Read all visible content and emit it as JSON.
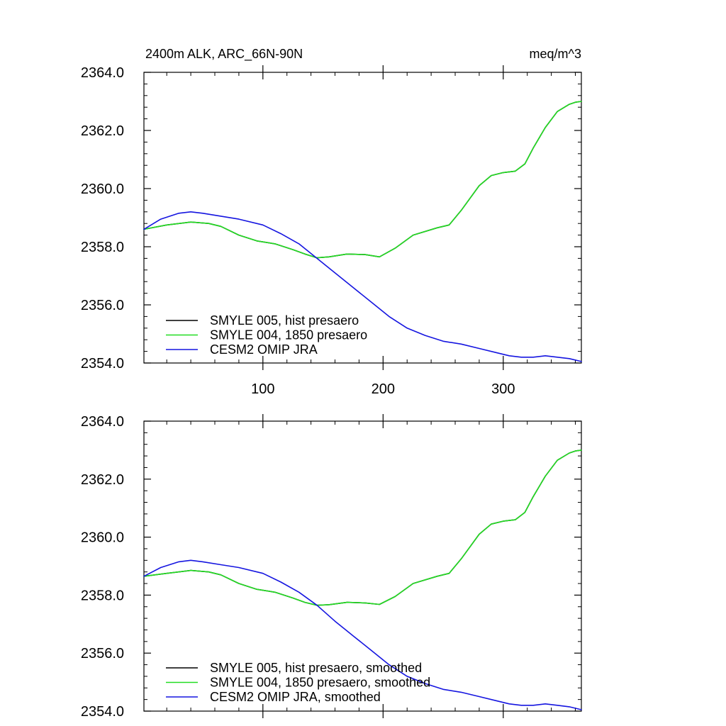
{
  "chart_data": [
    {
      "type": "line",
      "title": "2400m ALK, ARC_66N-90N",
      "units": "meq/m^3",
      "xlim": [
        1,
        365
      ],
      "ylim": [
        2354.0,
        2364.0
      ],
      "xticks": [
        100,
        200,
        300
      ],
      "xtick_labels": [
        "100",
        "200",
        "300"
      ],
      "yticks": [
        2354.0,
        2356.0,
        2358.0,
        2360.0,
        2362.0,
        2364.0
      ],
      "ytick_labels": [
        "2354.0",
        "2356.0",
        "2358.0",
        "2360.0",
        "2362.0",
        "2364.0"
      ],
      "grid": false,
      "legend_position": "bottom-left",
      "series": [
        {
          "name": "SMYLE 005, hist presaero",
          "color": "#000000",
          "x": [
            1,
            20,
            40,
            55,
            65,
            80,
            95,
            110,
            125,
            135,
            145,
            155,
            170,
            185,
            197,
            210,
            225,
            245,
            255,
            265,
            280,
            290,
            300,
            310,
            318,
            325,
            335,
            345,
            355,
            360,
            365
          ],
          "y": [
            2358.6,
            2358.75,
            2358.85,
            2358.8,
            2358.7,
            2358.4,
            2358.2,
            2358.1,
            2357.9,
            2357.75,
            2357.62,
            2357.65,
            2357.75,
            2357.73,
            2357.65,
            2357.95,
            2358.4,
            2358.65,
            2358.75,
            2359.25,
            2360.1,
            2360.45,
            2360.55,
            2360.6,
            2360.85,
            2361.4,
            2362.1,
            2362.65,
            2362.9,
            2362.97,
            2363.0
          ]
        },
        {
          "name": "SMYLE 004, 1850 presaero",
          "color": "#22dd22",
          "x": [
            1,
            20,
            40,
            55,
            65,
            80,
            95,
            110,
            125,
            135,
            145,
            155,
            170,
            185,
            197,
            210,
            225,
            245,
            255,
            265,
            280,
            290,
            300,
            310,
            318,
            325,
            335,
            345,
            355,
            360,
            365
          ],
          "y": [
            2358.6,
            2358.75,
            2358.85,
            2358.8,
            2358.7,
            2358.4,
            2358.2,
            2358.1,
            2357.9,
            2357.75,
            2357.62,
            2357.65,
            2357.75,
            2357.73,
            2357.65,
            2357.95,
            2358.4,
            2358.65,
            2358.75,
            2359.25,
            2360.1,
            2360.45,
            2360.55,
            2360.6,
            2360.85,
            2361.4,
            2362.1,
            2362.65,
            2362.9,
            2362.97,
            2363.0
          ]
        },
        {
          "name": "CESM2 OMIP JRA",
          "color": "#1515e0",
          "x": [
            1,
            15,
            30,
            40,
            50,
            65,
            80,
            100,
            115,
            130,
            145,
            160,
            175,
            190,
            205,
            220,
            235,
            250,
            265,
            280,
            295,
            305,
            315,
            325,
            335,
            345,
            355,
            365
          ],
          "y": [
            2358.6,
            2358.95,
            2359.15,
            2359.2,
            2359.15,
            2359.05,
            2358.95,
            2358.75,
            2358.45,
            2358.1,
            2357.6,
            2357.1,
            2356.6,
            2356.1,
            2355.6,
            2355.2,
            2354.95,
            2354.75,
            2354.65,
            2354.5,
            2354.35,
            2354.25,
            2354.2,
            2354.2,
            2354.25,
            2354.2,
            2354.15,
            2354.05
          ]
        }
      ]
    },
    {
      "type": "line",
      "xlim": [
        1,
        365
      ],
      "ylim": [
        2354.0,
        2364.0
      ],
      "xticks": [
        100,
        200,
        300
      ],
      "yticks": [
        2354.0,
        2356.0,
        2358.0,
        2360.0,
        2362.0,
        2364.0
      ],
      "ytick_labels": [
        "2354.0",
        "2356.0",
        "2358.0",
        "2360.0",
        "2362.0",
        "2364.0"
      ],
      "grid": false,
      "legend_position": "bottom-left",
      "series": [
        {
          "name": "SMYLE 005, hist presaero, smoothed",
          "color": "#000000",
          "x": [
            1,
            20,
            40,
            55,
            65,
            80,
            95,
            110,
            125,
            135,
            145,
            155,
            170,
            185,
            197,
            210,
            225,
            245,
            255,
            265,
            280,
            290,
            300,
            310,
            318,
            325,
            335,
            345,
            355,
            360,
            365
          ],
          "y": [
            2358.65,
            2358.75,
            2358.85,
            2358.8,
            2358.7,
            2358.4,
            2358.2,
            2358.1,
            2357.9,
            2357.75,
            2357.65,
            2357.67,
            2357.75,
            2357.73,
            2357.68,
            2357.95,
            2358.4,
            2358.65,
            2358.75,
            2359.25,
            2360.1,
            2360.45,
            2360.55,
            2360.6,
            2360.85,
            2361.4,
            2362.1,
            2362.65,
            2362.9,
            2362.97,
            2363.0
          ]
        },
        {
          "name": "SMYLE 004, 1850 presaero, smoothed",
          "color": "#22dd22",
          "x": [
            1,
            20,
            40,
            55,
            65,
            80,
            95,
            110,
            125,
            135,
            145,
            155,
            170,
            185,
            197,
            210,
            225,
            245,
            255,
            265,
            280,
            290,
            300,
            310,
            318,
            325,
            335,
            345,
            355,
            360,
            365
          ],
          "y": [
            2358.65,
            2358.75,
            2358.85,
            2358.8,
            2358.7,
            2358.4,
            2358.2,
            2358.1,
            2357.9,
            2357.75,
            2357.65,
            2357.67,
            2357.75,
            2357.73,
            2357.68,
            2357.95,
            2358.4,
            2358.65,
            2358.75,
            2359.25,
            2360.1,
            2360.45,
            2360.55,
            2360.6,
            2360.85,
            2361.4,
            2362.1,
            2362.65,
            2362.9,
            2362.97,
            2363.0
          ]
        },
        {
          "name": "CESM2 OMIP JRA, smoothed",
          "color": "#1515e0",
          "x": [
            1,
            15,
            30,
            40,
            50,
            65,
            80,
            100,
            115,
            130,
            145,
            160,
            175,
            190,
            205,
            220,
            235,
            250,
            265,
            280,
            295,
            305,
            315,
            325,
            335,
            345,
            355,
            365
          ],
          "y": [
            2358.65,
            2358.95,
            2359.15,
            2359.2,
            2359.15,
            2359.05,
            2358.95,
            2358.75,
            2358.45,
            2358.1,
            2357.65,
            2357.1,
            2356.6,
            2356.1,
            2355.6,
            2355.2,
            2354.95,
            2354.75,
            2354.65,
            2354.5,
            2354.35,
            2354.25,
            2354.2,
            2354.2,
            2354.25,
            2354.2,
            2354.15,
            2354.05
          ]
        }
      ]
    }
  ]
}
